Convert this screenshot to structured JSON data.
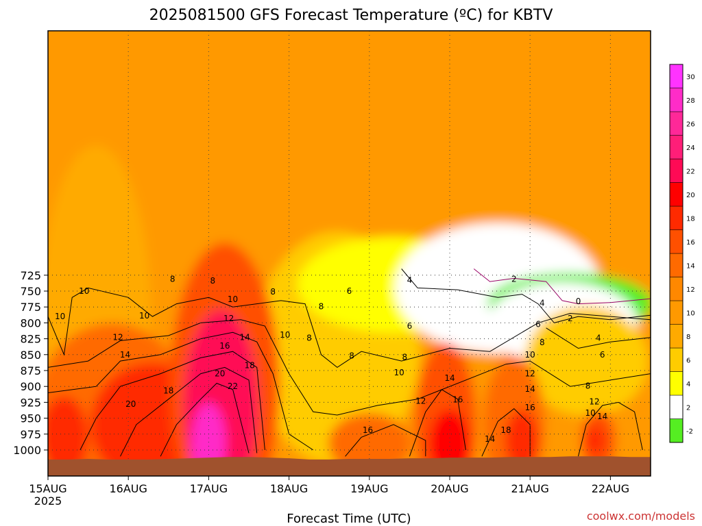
{
  "chart_data": {
    "type": "heatmap",
    "title": "2025081500 GFS Forecast Temperature (ºC) for KBTV",
    "xlabel": "Forecast Time (UTC)",
    "ylabel": "",
    "x_tick_labels": [
      "15AUG",
      "16AUG",
      "17AUG",
      "18AUG",
      "19AUG",
      "20AUG",
      "21AUG",
      "22AUG"
    ],
    "x_tick_sublabel": "2025",
    "y_tick_labels": [
      "725",
      "750",
      "775",
      "800",
      "825",
      "850",
      "875",
      "900",
      "925",
      "950",
      "975",
      "1000"
    ],
    "y_values_hpa": [
      725,
      750,
      775,
      800,
      825,
      850,
      875,
      900,
      925,
      950,
      975,
      1000
    ],
    "ylim_hpa": [
      1020,
      715
    ],
    "x_days": [
      0,
      7.5
    ],
    "grid": true,
    "contour_interval_c": 2,
    "colorbar": {
      "levels": [
        -2,
        2,
        4,
        6,
        8,
        10,
        12,
        14,
        16,
        18,
        20,
        22,
        24,
        26,
        28,
        30
      ],
      "tick_labels": [
        "-2",
        "2",
        "4",
        "6",
        "8",
        "10",
        "12",
        "14",
        "16",
        "18",
        "20",
        "22",
        "24",
        "26",
        "28",
        "30"
      ],
      "colors": [
        "#55ee22",
        "#ffffff",
        "#ffff00",
        "#ffcc00",
        "#ffaa00",
        "#ff9900",
        "#ff8800",
        "#ff6a00",
        "#ff5000",
        "#ff2a00",
        "#ff0000",
        "#ff0a55",
        "#ff1e78",
        "#ff2898",
        "#ff2cc8",
        "#ff33ff"
      ],
      "placement": "right"
    },
    "contour_labels": [
      {
        "text": "8",
        "day": 1.55,
        "hpa": 731
      },
      {
        "text": "8",
        "day": 2.05,
        "hpa": 734
      },
      {
        "text": "10",
        "day": 0.45,
        "hpa": 750
      },
      {
        "text": "8",
        "day": 2.8,
        "hpa": 751
      },
      {
        "text": "10",
        "day": 2.3,
        "hpa": 763
      },
      {
        "text": "8",
        "day": 3.4,
        "hpa": 774
      },
      {
        "text": "10",
        "day": 0.15,
        "hpa": 790
      },
      {
        "text": "10",
        "day": 1.2,
        "hpa": 789
      },
      {
        "text": "12",
        "day": 2.25,
        "hpa": 793
      },
      {
        "text": "12",
        "day": 0.87,
        "hpa": 823
      },
      {
        "text": "14",
        "day": 2.45,
        "hpa": 823
      },
      {
        "text": "10",
        "day": 2.95,
        "hpa": 819
      },
      {
        "text": "8",
        "day": 3.25,
        "hpa": 824
      },
      {
        "text": "16",
        "day": 2.2,
        "hpa": 836
      },
      {
        "text": "14",
        "day": 0.96,
        "hpa": 850
      },
      {
        "text": "8",
        "day": 3.78,
        "hpa": 852
      },
      {
        "text": "8",
        "day": 4.44,
        "hpa": 854
      },
      {
        "text": "18",
        "day": 2.51,
        "hpa": 867
      },
      {
        "text": "20",
        "day": 2.14,
        "hpa": 880
      },
      {
        "text": "10",
        "day": 4.37,
        "hpa": 878
      },
      {
        "text": "22",
        "day": 2.3,
        "hpa": 900
      },
      {
        "text": "18",
        "day": 1.5,
        "hpa": 907
      },
      {
        "text": "12",
        "day": 4.64,
        "hpa": 923
      },
      {
        "text": "20",
        "day": 1.03,
        "hpa": 928
      },
      {
        "text": "16",
        "day": 3.98,
        "hpa": 969
      },
      {
        "text": "6",
        "day": 3.75,
        "hpa": 750
      },
      {
        "text": "4",
        "day": 4.5,
        "hpa": 733
      },
      {
        "text": "6",
        "day": 4.5,
        "hpa": 805
      },
      {
        "text": "2",
        "day": 5.8,
        "hpa": 731
      },
      {
        "text": "4",
        "day": 6.15,
        "hpa": 769
      },
      {
        "text": "0",
        "day": 6.6,
        "hpa": 766
      },
      {
        "text": "2",
        "day": 6.5,
        "hpa": 793
      },
      {
        "text": "6",
        "day": 6.1,
        "hpa": 802
      },
      {
        "text": "4",
        "day": 6.85,
        "hpa": 824
      },
      {
        "text": "8",
        "day": 6.15,
        "hpa": 831
      },
      {
        "text": "10",
        "day": 6.0,
        "hpa": 850
      },
      {
        "text": "6",
        "day": 6.9,
        "hpa": 850
      },
      {
        "text": "12",
        "day": 6.0,
        "hpa": 880
      },
      {
        "text": "8",
        "day": 6.72,
        "hpa": 899
      },
      {
        "text": "14",
        "day": 5.0,
        "hpa": 887
      },
      {
        "text": "14",
        "day": 6.0,
        "hpa": 904
      },
      {
        "text": "16",
        "day": 5.1,
        "hpa": 921
      },
      {
        "text": "12",
        "day": 6.8,
        "hpa": 924
      },
      {
        "text": "16",
        "day": 6.0,
        "hpa": 933
      },
      {
        "text": "10",
        "day": 6.75,
        "hpa": 942
      },
      {
        "text": "14",
        "day": 6.9,
        "hpa": 947
      },
      {
        "text": "18",
        "day": 5.7,
        "hpa": 969
      },
      {
        "text": "14",
        "day": 5.5,
        "hpa": 983
      }
    ],
    "terrain_color": "#a0522d",
    "surface_hpa": [
      1015,
      1015,
      1014,
      1015,
      1015,
      1015,
      1014,
      1013,
      1012,
      1011,
      1011,
      1012,
      1013,
      1015,
      1015,
      1014,
      1014,
      1014,
      1013,
      1013,
      1012,
      1012,
      1012,
      1011,
      1011,
      1011,
      1010,
      1010,
      1010,
      1011,
      1011
    ]
  },
  "credit": "coolwx.com/models"
}
